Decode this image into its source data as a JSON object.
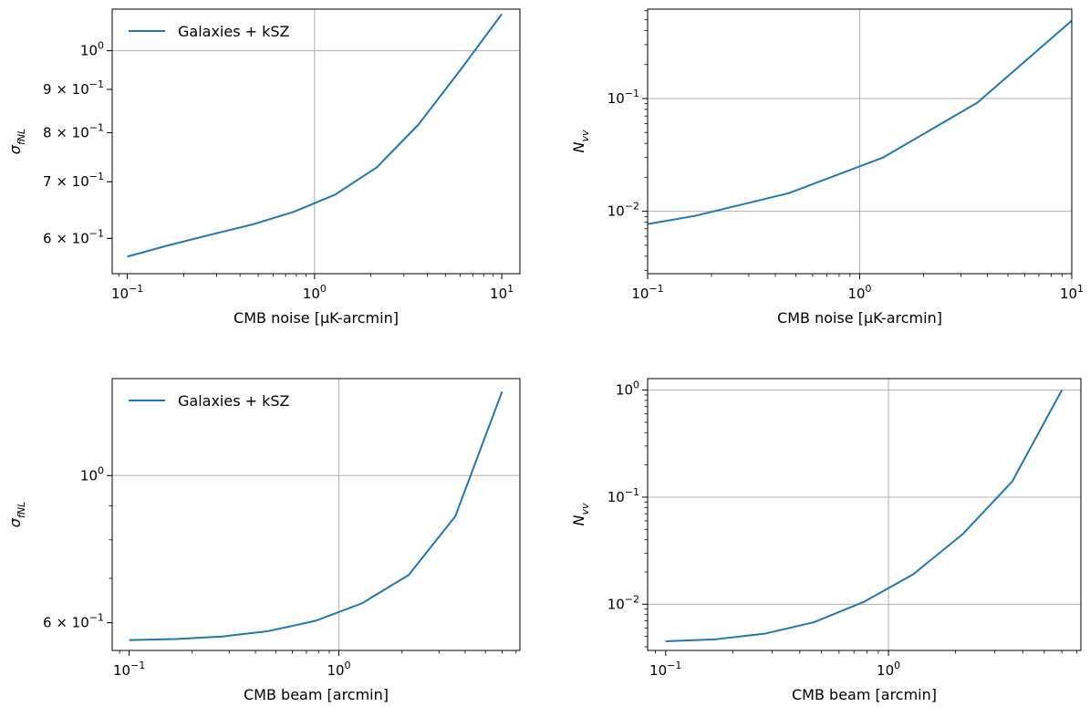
{
  "chart_data": [
    {
      "type": "line",
      "xlabel": "CMB noise [μK-arcmin]",
      "ylabel": "σ_fNL",
      "xscale": "log",
      "yscale": "log",
      "xlim": [
        0.083,
        12.5
      ],
      "ylim": [
        0.545,
        1.12
      ],
      "grid": true,
      "legend_position": "upper-left",
      "xticks": [
        {
          "value": 0.1,
          "base": "10",
          "exp": "−1"
        },
        {
          "value": 1,
          "base": "10",
          "exp": "0"
        },
        {
          "value": 10,
          "base": "10",
          "exp": "1"
        }
      ],
      "yticks": [
        {
          "value": 0.6,
          "mant": "6 × 10",
          "exp": "−1"
        },
        {
          "value": 0.7,
          "mant": "7 × 10",
          "exp": "−1"
        },
        {
          "value": 0.8,
          "mant": "8 × 10",
          "exp": "−1"
        },
        {
          "value": 0.9,
          "mant": "9 × 10",
          "exp": "−1"
        },
        {
          "value": 1.0,
          "mant": "10",
          "exp": "0"
        }
      ],
      "gridx": [
        1
      ],
      "gridy": [
        1.0
      ],
      "series": [
        {
          "name": "Galaxies + kSZ",
          "color": "#1f77b4",
          "x": [
            0.1,
            0.167,
            0.278,
            0.464,
            0.774,
            1.29,
            2.15,
            3.59,
            5.99,
            10
          ],
          "y": [
            0.571,
            0.589,
            0.606,
            0.623,
            0.645,
            0.676,
            0.728,
            0.818,
            0.948,
            1.105
          ]
        }
      ]
    },
    {
      "type": "line",
      "xlabel": "CMB noise [μK-arcmin]",
      "ylabel": "N_vv",
      "xscale": "log",
      "yscale": "log",
      "xlim": [
        0.1,
        10
      ],
      "ylim": [
        0.0028,
        0.62
      ],
      "grid": true,
      "xticks": [
        {
          "value": 0.1,
          "base": "10",
          "exp": "−1"
        },
        {
          "value": 1,
          "base": "10",
          "exp": "0"
        },
        {
          "value": 10,
          "base": "10",
          "exp": "1"
        }
      ],
      "yticks": [
        {
          "value": 0.01,
          "mant": "10",
          "exp": "−2"
        },
        {
          "value": 0.1,
          "mant": "10",
          "exp": "−1"
        }
      ],
      "gridx": [
        1
      ],
      "gridy": [
        0.01,
        0.1
      ],
      "series": [
        {
          "color": "#1f77b4",
          "x": [
            0.1,
            0.167,
            0.464,
            1.29,
            3.59,
            10
          ],
          "y": [
            0.0077,
            0.0091,
            0.0145,
            0.03,
            0.092,
            0.49
          ]
        }
      ]
    },
    {
      "type": "line",
      "xlabel": "CMB beam [arcmin]",
      "ylabel": "σ_fNL",
      "xscale": "log",
      "yscale": "log",
      "xlim": [
        0.083,
        7.3
      ],
      "ylim": [
        0.545,
        1.4
      ],
      "grid": true,
      "legend_position": "upper-left",
      "xticks": [
        {
          "value": 0.1,
          "base": "10",
          "exp": "−1"
        },
        {
          "value": 1,
          "base": "10",
          "exp": "0"
        }
      ],
      "yticks": [
        {
          "value": 0.6,
          "mant": "6 × 10",
          "exp": "−1"
        },
        {
          "value": 1.0,
          "mant": "10",
          "exp": "0"
        }
      ],
      "gridx": [
        1
      ],
      "gridy": [
        1.0
      ],
      "series": [
        {
          "name": "Galaxies + kSZ",
          "color": "#1f77b4",
          "x": [
            0.1,
            0.167,
            0.278,
            0.464,
            0.774,
            1.29,
            2.15,
            3.59,
            6.0
          ],
          "y": [
            0.565,
            0.567,
            0.572,
            0.583,
            0.604,
            0.642,
            0.708,
            0.868,
            1.338
          ]
        }
      ]
    },
    {
      "type": "line",
      "xlabel": "CMB beam [arcmin]",
      "ylabel": "N_vv",
      "xscale": "log",
      "yscale": "log",
      "xlim": [
        0.083,
        7.3
      ],
      "ylim": [
        0.0037,
        1.28
      ],
      "grid": true,
      "xticks": [
        {
          "value": 0.1,
          "base": "10",
          "exp": "−1"
        },
        {
          "value": 1,
          "base": "10",
          "exp": "0"
        }
      ],
      "yticks": [
        {
          "value": 0.01,
          "mant": "10",
          "exp": "−2"
        },
        {
          "value": 0.1,
          "mant": "10",
          "exp": "−1"
        },
        {
          "value": 1,
          "mant": "10",
          "exp": "0"
        }
      ],
      "gridx": [
        1
      ],
      "gridy": [
        0.01,
        0.1,
        1
      ],
      "series": [
        {
          "color": "#1f77b4",
          "x": [
            0.1,
            0.167,
            0.278,
            0.464,
            0.774,
            1.29,
            2.15,
            3.59,
            6.0
          ],
          "y": [
            0.0045,
            0.0047,
            0.0053,
            0.0068,
            0.0105,
            0.019,
            0.045,
            0.14,
            1.0
          ]
        }
      ]
    }
  ]
}
